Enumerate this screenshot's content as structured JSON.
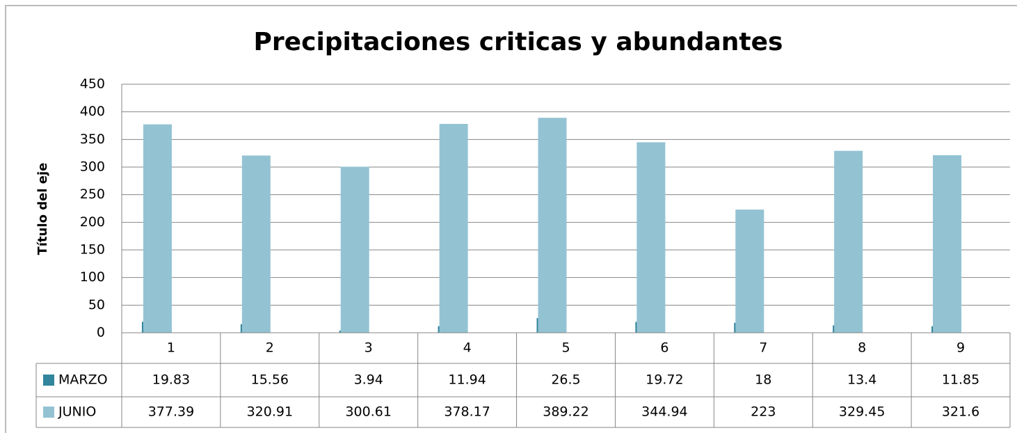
{
  "chart_data": {
    "type": "bar",
    "title": "Precipitaciones criticas y abundantes",
    "y_label": "Título del eje",
    "categories": [
      "1",
      "2",
      "3",
      "4",
      "5",
      "6",
      "7",
      "8",
      "9"
    ],
    "series": [
      {
        "name": "MARZO",
        "color": "#31859c",
        "values": [
          19.83,
          15.56,
          3.94,
          11.94,
          26.5,
          19.72,
          18,
          13.4,
          11.85
        ]
      },
      {
        "name": "JUNIO",
        "color": "#93c3d3",
        "values": [
          377.39,
          320.91,
          300.61,
          378.17,
          389.22,
          344.94,
          223,
          329.45,
          321.6
        ]
      }
    ],
    "ylim": [
      0,
      450
    ],
    "yticks": [
      0,
      50,
      100,
      150,
      200,
      250,
      300,
      350,
      400,
      450
    ],
    "grid": true
  }
}
